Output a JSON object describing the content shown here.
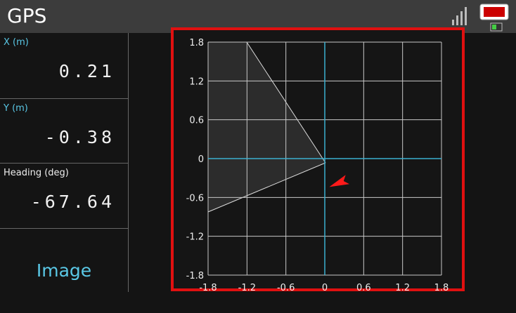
{
  "header": {
    "title": "GPS"
  },
  "readouts": [
    {
      "label": "X (m)",
      "value": 0.21
    },
    {
      "label": "Y (m)",
      "value": -0.38
    },
    {
      "label": "Heading (deg)",
      "value": -67.64
    }
  ],
  "button": "Image",
  "plot": {
    "type": "scatter",
    "xlim": [
      -1.8,
      1.8
    ],
    "ylim": [
      -1.8,
      1.8
    ],
    "xticks": [
      -1.8,
      -1.2,
      -0.6,
      0,
      0.6,
      1.2,
      1.8
    ],
    "yticks": [
      -1.8,
      -1.2,
      -0.6,
      0,
      0.6,
      1.2,
      1.8
    ],
    "grid": true,
    "grid_color": "#c8c8c8",
    "axis_color": "#3bb0d0",
    "marker_color": "#ff1a1a"
  }
}
